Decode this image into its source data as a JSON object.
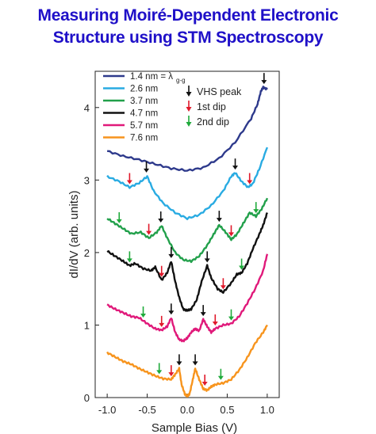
{
  "title_lines": [
    "Measuring Moiré-Dependent Electronic",
    "Structure using STM Spectroscopy"
  ],
  "colors": {
    "title": "#1f10c8",
    "arrow_black": "#111111",
    "arrow_red": "#e0192b",
    "arrow_green": "#1faa3b"
  },
  "chart_data": {
    "type": "line",
    "xlabel": "Sample Bias (V)",
    "ylabel": "dI/dV (arb. units)",
    "xlim": [
      -1.15,
      1.15
    ],
    "ylim": [
      0,
      4.5
    ],
    "xticks": [
      -1.0,
      -0.5,
      0.0,
      0.5,
      1.0
    ],
    "xtick_labels": [
      "-1.0",
      "-0.5",
      "0.0",
      "0.5",
      "1.0"
    ],
    "yticks": [
      0,
      1,
      2,
      3,
      4
    ],
    "ytick_labels": [
      "0",
      "1",
      "2",
      "3",
      "4"
    ],
    "grid": false,
    "legend_position": "top-left",
    "arrow_legend": [
      {
        "label": "VHS peak",
        "color": "#111111"
      },
      {
        "label": "1st dip",
        "color": "#e0192b"
      },
      {
        "label": "2nd dip",
        "color": "#1faa3b"
      }
    ],
    "series": [
      {
        "name": "1.4 nm = λg-g",
        "legend_main": "1.4 nm = λ",
        "legend_sub": "g-g",
        "color": "#2e3a8c",
        "x": [
          -1.0,
          -0.8,
          -0.6,
          -0.4,
          -0.2,
          0.0,
          0.2,
          0.4,
          0.6,
          0.8,
          0.88,
          0.92,
          0.95,
          1.0
        ],
        "y": [
          3.4,
          3.33,
          3.28,
          3.22,
          3.16,
          3.13,
          3.17,
          3.3,
          3.52,
          3.85,
          4.05,
          4.22,
          4.28,
          4.25
        ]
      },
      {
        "name": "2.6 nm",
        "color": "#29abe2",
        "x": [
          -1.0,
          -0.85,
          -0.72,
          -0.6,
          -0.5,
          -0.42,
          -0.3,
          -0.15,
          0.0,
          0.15,
          0.3,
          0.45,
          0.55,
          0.6,
          0.68,
          0.76,
          0.82,
          0.9,
          1.0
        ],
        "y": [
          3.05,
          2.98,
          2.9,
          2.96,
          3.05,
          2.85,
          2.68,
          2.55,
          2.47,
          2.52,
          2.65,
          2.85,
          3.05,
          3.1,
          2.98,
          2.9,
          2.95,
          3.15,
          3.45
        ]
      },
      {
        "name": "3.7 nm",
        "color": "#22a04b",
        "x": [
          -1.0,
          -0.9,
          -0.8,
          -0.7,
          -0.58,
          -0.48,
          -0.38,
          -0.32,
          -0.25,
          -0.15,
          -0.05,
          0.05,
          0.15,
          0.25,
          0.33,
          0.4,
          0.48,
          0.55,
          0.62,
          0.7,
          0.78,
          0.86,
          0.93,
          1.0
        ],
        "y": [
          2.47,
          2.4,
          2.33,
          2.26,
          2.28,
          2.2,
          2.28,
          2.37,
          2.2,
          2.0,
          1.9,
          1.88,
          1.95,
          2.1,
          2.25,
          2.38,
          2.28,
          2.18,
          2.25,
          2.4,
          2.55,
          2.5,
          2.6,
          2.75
        ]
      },
      {
        "name": "4.7 nm",
        "color": "#111111",
        "x": [
          -1.0,
          -0.9,
          -0.8,
          -0.72,
          -0.65,
          -0.55,
          -0.45,
          -0.4,
          -0.32,
          -0.25,
          -0.2,
          -0.15,
          -0.1,
          -0.05,
          0.0,
          0.05,
          0.12,
          0.18,
          0.25,
          0.3,
          0.38,
          0.45,
          0.55,
          0.62,
          0.68,
          0.75,
          0.82,
          0.9,
          0.95,
          1.0
        ],
        "y": [
          2.02,
          1.95,
          1.88,
          1.82,
          1.85,
          1.78,
          1.75,
          1.8,
          1.62,
          1.72,
          1.88,
          1.6,
          1.38,
          1.22,
          1.2,
          1.22,
          1.35,
          1.6,
          1.82,
          1.65,
          1.5,
          1.45,
          1.58,
          1.7,
          1.72,
          1.85,
          2.05,
          2.25,
          2.38,
          2.55
        ]
      },
      {
        "name": "5.7 nm",
        "color": "#e0197a",
        "x": [
          -1.0,
          -0.9,
          -0.8,
          -0.7,
          -0.6,
          -0.5,
          -0.4,
          -0.32,
          -0.25,
          -0.2,
          -0.15,
          -0.1,
          -0.05,
          0.0,
          0.05,
          0.1,
          0.15,
          0.2,
          0.25,
          0.3,
          0.35,
          0.45,
          0.55,
          0.65,
          0.75,
          0.85,
          0.95,
          1.0
        ],
        "y": [
          1.28,
          1.22,
          1.17,
          1.12,
          1.1,
          1.02,
          0.95,
          0.93,
          0.98,
          1.1,
          0.9,
          0.8,
          0.78,
          0.82,
          0.9,
          0.95,
          0.92,
          1.08,
          0.98,
          0.9,
          0.95,
          1.0,
          1.02,
          1.12,
          1.3,
          1.5,
          1.75,
          1.98
        ]
      },
      {
        "name": "7.6 nm",
        "color": "#f7941d",
        "x": [
          -1.0,
          -0.9,
          -0.8,
          -0.7,
          -0.6,
          -0.5,
          -0.4,
          -0.3,
          -0.2,
          -0.15,
          -0.1,
          -0.07,
          -0.03,
          0.0,
          0.03,
          0.07,
          0.1,
          0.15,
          0.2,
          0.25,
          0.3,
          0.35,
          0.45,
          0.55,
          0.65,
          0.75,
          0.85,
          0.95,
          1.0
        ],
        "y": [
          0.62,
          0.56,
          0.5,
          0.46,
          0.4,
          0.35,
          0.3,
          0.26,
          0.25,
          0.32,
          0.4,
          0.18,
          0.05,
          0.02,
          0.05,
          0.25,
          0.4,
          0.25,
          0.12,
          0.1,
          0.15,
          0.18,
          0.2,
          0.25,
          0.38,
          0.55,
          0.75,
          0.9,
          1.0
        ]
      }
    ],
    "annotations": [
      {
        "series": 0,
        "kind": "VHS peak",
        "color": "#111111",
        "x": 0.96,
        "y": 4.28
      },
      {
        "series": 1,
        "kind": "VHS peak",
        "color": "#111111",
        "x": -0.51,
        "y": 3.06
      },
      {
        "series": 1,
        "kind": "1st dip",
        "color": "#e0192b",
        "x": -0.72,
        "y": 2.9
      },
      {
        "series": 1,
        "kind": "VHS peak",
        "color": "#111111",
        "x": 0.6,
        "y": 3.1
      },
      {
        "series": 1,
        "kind": "1st dip",
        "color": "#e0192b",
        "x": 0.78,
        "y": 2.9
      },
      {
        "series": 2,
        "kind": "2nd dip",
        "color": "#1faa3b",
        "x": -0.85,
        "y": 2.36
      },
      {
        "series": 2,
        "kind": "1st dip",
        "color": "#e0192b",
        "x": -0.48,
        "y": 2.2
      },
      {
        "series": 2,
        "kind": "VHS peak",
        "color": "#111111",
        "x": -0.33,
        "y": 2.37
      },
      {
        "series": 2,
        "kind": "VHS peak",
        "color": "#111111",
        "x": 0.4,
        "y": 2.38
      },
      {
        "series": 2,
        "kind": "1st dip",
        "color": "#e0192b",
        "x": 0.55,
        "y": 2.18
      },
      {
        "series": 2,
        "kind": "2nd dip",
        "color": "#1faa3b",
        "x": 0.86,
        "y": 2.5
      },
      {
        "series": 3,
        "kind": "2nd dip",
        "color": "#1faa3b",
        "x": -0.72,
        "y": 1.82
      },
      {
        "series": 3,
        "kind": "1st dip",
        "color": "#e0192b",
        "x": -0.32,
        "y": 1.62
      },
      {
        "series": 3,
        "kind": "VHS peak",
        "color": "#111111",
        "x": -0.2,
        "y": 1.88
      },
      {
        "series": 3,
        "kind": "VHS peak",
        "color": "#111111",
        "x": 0.25,
        "y": 1.82
      },
      {
        "series": 3,
        "kind": "1st dip",
        "color": "#e0192b",
        "x": 0.45,
        "y": 1.45
      },
      {
        "series": 3,
        "kind": "2nd dip",
        "color": "#1faa3b",
        "x": 0.68,
        "y": 1.72
      },
      {
        "series": 4,
        "kind": "2nd dip",
        "color": "#1faa3b",
        "x": -0.55,
        "y": 1.06
      },
      {
        "series": 4,
        "kind": "1st dip",
        "color": "#e0192b",
        "x": -0.32,
        "y": 0.93
      },
      {
        "series": 4,
        "kind": "VHS peak",
        "color": "#111111",
        "x": -0.2,
        "y": 1.1
      },
      {
        "series": 4,
        "kind": "VHS peak",
        "color": "#111111",
        "x": 0.2,
        "y": 1.08
      },
      {
        "series": 4,
        "kind": "1st dip",
        "color": "#e0192b",
        "x": 0.35,
        "y": 0.95
      },
      {
        "series": 4,
        "kind": "2nd dip",
        "color": "#1faa3b",
        "x": 0.55,
        "y": 1.02
      },
      {
        "series": 5,
        "kind": "2nd dip",
        "color": "#1faa3b",
        "x": -0.35,
        "y": 0.28
      },
      {
        "series": 5,
        "kind": "1st dip",
        "color": "#e0192b",
        "x": -0.2,
        "y": 0.25
      },
      {
        "series": 5,
        "kind": "VHS peak",
        "color": "#111111",
        "x": -0.1,
        "y": 0.4
      },
      {
        "series": 5,
        "kind": "VHS peak",
        "color": "#111111",
        "x": 0.1,
        "y": 0.4
      },
      {
        "series": 5,
        "kind": "1st dip",
        "color": "#e0192b",
        "x": 0.22,
        "y": 0.12
      },
      {
        "series": 5,
        "kind": "2nd dip",
        "color": "#1faa3b",
        "x": 0.42,
        "y": 0.2
      }
    ]
  }
}
